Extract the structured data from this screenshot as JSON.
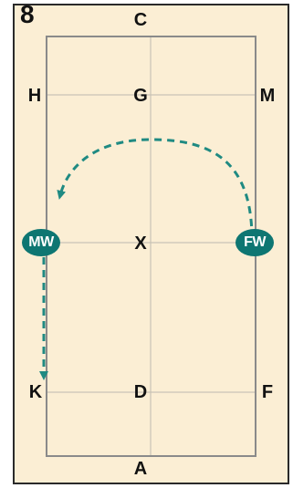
{
  "figure": {
    "number": "8"
  },
  "colors": {
    "background": "#fbeed4",
    "arena_line": "#8a8a8a",
    "center_line": "#c9c3b6",
    "path": "#1f8a82",
    "rider_fill": "#0e7672",
    "rider_text": "#ffffff"
  },
  "markers": {
    "C": "C",
    "H": "H",
    "G": "G",
    "M": "M",
    "X": "X",
    "K": "K",
    "D": "D",
    "F": "F",
    "A": "A"
  },
  "riders": {
    "left": "MW",
    "right": "FW"
  },
  "path": {
    "style": "dashed",
    "description_shape": "half-circle from right to left, then straight down left track with arrowheads"
  }
}
